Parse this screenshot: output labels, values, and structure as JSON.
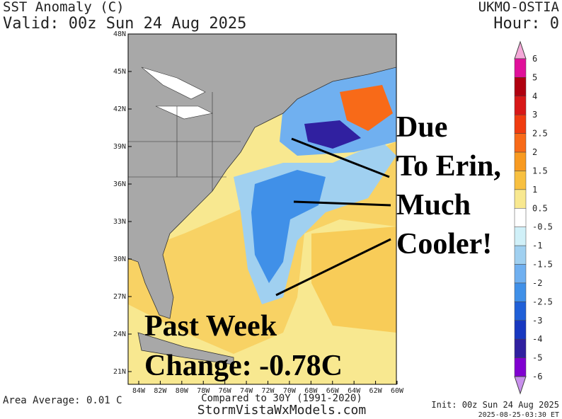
{
  "header": {
    "title": "SST Anomaly (C)",
    "valid": "Valid: 00z Sun 24 Aug 2025",
    "model": "UKMO-OSTIA",
    "hour": "Hour: 0"
  },
  "map": {
    "lat_labels": [
      "48N",
      "45N",
      "42N",
      "39N",
      "36N",
      "33N",
      "30N",
      "27N",
      "24N",
      "21N"
    ],
    "lon_labels": [
      "84W",
      "82W",
      "80W",
      "78W",
      "76W",
      "74W",
      "72W",
      "70W",
      "68W",
      "66W",
      "64W",
      "62W",
      "60W"
    ]
  },
  "annotations": {
    "erin": [
      "Due",
      "To Erin,",
      "Much",
      "Cooler!"
    ],
    "week": [
      "Past Week",
      "Change: -0.78C"
    ]
  },
  "colorbar": {
    "labels": [
      "6",
      "5",
      "4",
      "3",
      "2.5",
      "2",
      "1.5",
      "1",
      "0.5",
      "-0.5",
      "-1",
      "-1.5",
      "-2",
      "-2.5",
      "-3",
      "-4",
      "-5",
      "-6"
    ],
    "colors": [
      "#f4a8d8",
      "#e0109a",
      "#b00010",
      "#d81818",
      "#f03c10",
      "#f86a18",
      "#f89a20",
      "#f8c040",
      "#f8e890",
      "#ffffff",
      "#d0f0f8",
      "#a0d0f0",
      "#70b0f0",
      "#4090e8",
      "#2060d8",
      "#1838c0",
      "#3020a0",
      "#8000d0",
      "#c890ec"
    ]
  },
  "footer": {
    "area_average": "Area Average: 0.01 C",
    "compared": "Compared to 30Y (1991-2020)",
    "site": "StormVistaWxModels.com",
    "init": "Init: 00z Sun 24 Aug 2025",
    "stamp": "2025-08-25-03:30 ET"
  }
}
